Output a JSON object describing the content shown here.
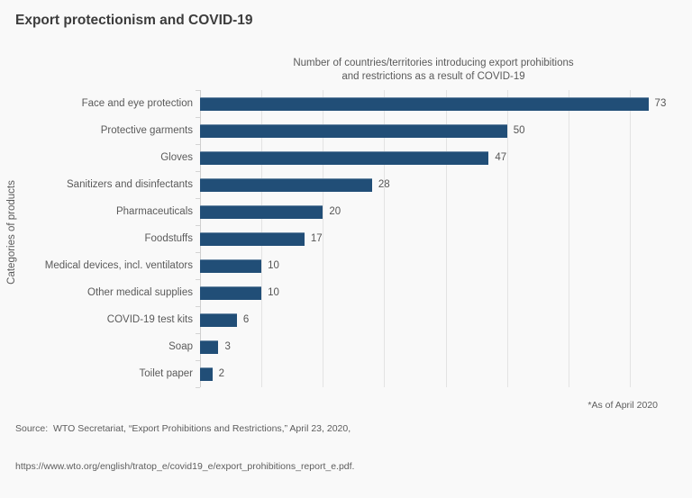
{
  "header": {
    "title": "Export protectionism and COVID-19"
  },
  "chart_data": {
    "type": "bar",
    "orientation": "horizontal",
    "subtitle_lines": [
      "Number of countries/territories introducing export prohibitions",
      "and restrictions as a result of COVID-19"
    ],
    "ylabel": "Categories of products",
    "categories": [
      "Face and eye protection",
      "Protective garments",
      "Gloves",
      "Sanitizers and disinfectants",
      "Pharmaceuticals",
      "Foodstuffs",
      "Medical devices, incl. ventilators",
      "Other medical supplies",
      "COVID-19 test kits",
      "Soap",
      "Toilet paper"
    ],
    "values": [
      73,
      50,
      47,
      28,
      20,
      17,
      10,
      10,
      6,
      3,
      2
    ],
    "xlim": [
      0,
      76
    ],
    "grid_step": 10,
    "grid_max_line": 70,
    "grid": true,
    "legend": "none",
    "bar_color": "#214e77"
  },
  "footer": {
    "source_lines": [
      "Source:  WTO Secretariat, “Export Prohibitions and Restrictions,” April 23, 2020,",
      "https://www.wto.org/english/tratop_e/covid19_e/export_prohibitions_report_e.pdf."
    ],
    "asof": "*As of April 2020"
  },
  "colors": {
    "background": "#f9f9f9",
    "bar": "#214e77",
    "title_text": "#3c3c3c",
    "label_text": "#5a5a5a",
    "gridline": "#e3e3e3",
    "axisline": "#cfcfcf"
  }
}
